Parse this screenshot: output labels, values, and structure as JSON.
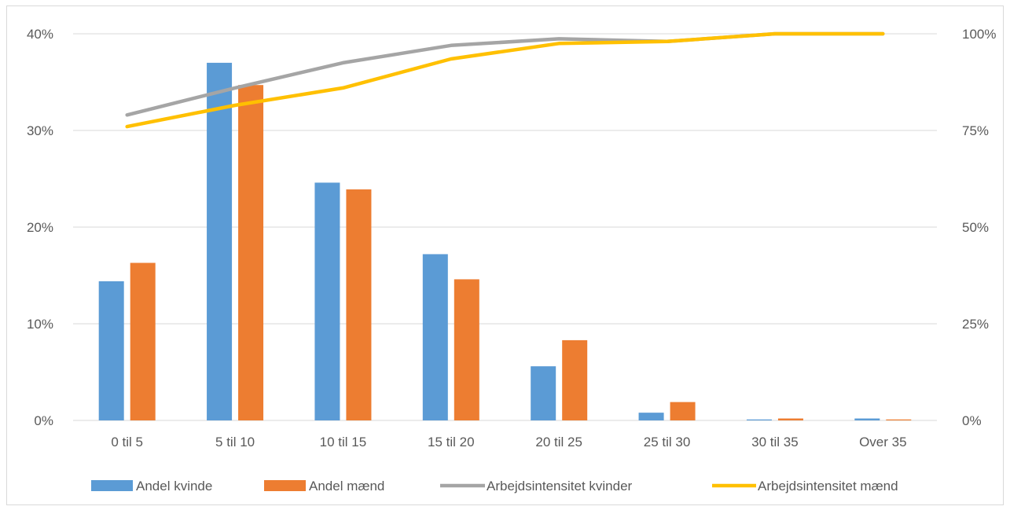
{
  "chart_data": {
    "type": "bar",
    "categories": [
      "0 til 5",
      "5 til 10",
      "10 til 15",
      "15 til 20",
      "20 til 25",
      "25 til 30",
      "30 til 35",
      "Over 35"
    ],
    "bar_series": [
      {
        "name": "Andel kvinde",
        "color": "#5b9bd5",
        "values": [
          14.4,
          37.0,
          24.6,
          17.2,
          5.6,
          0.8,
          0.1,
          0.2
        ]
      },
      {
        "name": "Andel mænd",
        "color": "#ed7d31",
        "values": [
          16.3,
          34.7,
          23.9,
          14.6,
          8.3,
          1.9,
          0.2,
          0.1
        ]
      }
    ],
    "line_series": [
      {
        "name": "Arbejdsintensitet kvinder",
        "color": "#a5a5a5",
        "values": [
          79,
          86,
          92.5,
          97,
          98.7,
          98,
          100,
          100
        ]
      },
      {
        "name": "Arbejdsintensitet mænd",
        "color": "#ffc000",
        "values": [
          76,
          81.5,
          86,
          93.5,
          97.5,
          98,
          100,
          100
        ]
      }
    ],
    "left_axis": {
      "min": 0,
      "max": 40,
      "ticks": [
        "0%",
        "10%",
        "20%",
        "30%",
        "40%"
      ]
    },
    "right_axis": {
      "min": 0,
      "max": 100,
      "ticks": [
        "0%",
        "25%",
        "50%",
        "75%",
        "100%"
      ]
    },
    "grid": true,
    "legend_position": "bottom"
  }
}
